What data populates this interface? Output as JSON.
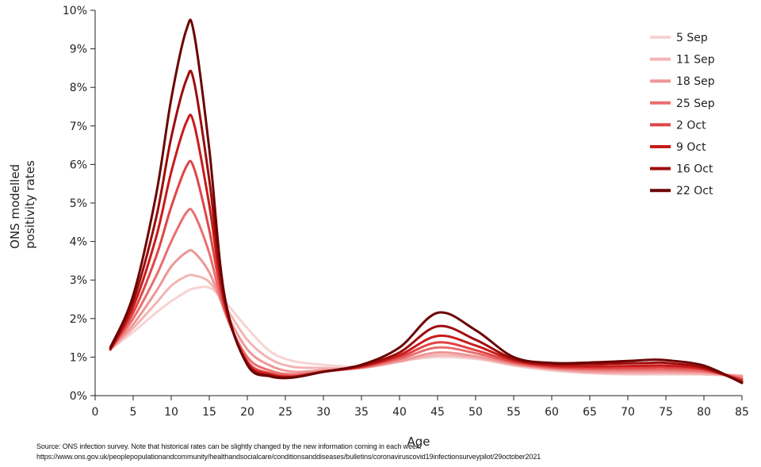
{
  "chart_data": {
    "type": "line",
    "title": "",
    "xlabel": "Age",
    "ylabel_lines": [
      "ONS modelled",
      "positivity rates"
    ],
    "xlim": [
      0,
      85
    ],
    "ylim": [
      0,
      10
    ],
    "x_ticks": [
      0,
      5,
      10,
      15,
      20,
      25,
      30,
      35,
      40,
      45,
      50,
      55,
      60,
      65,
      70,
      75,
      80,
      85
    ],
    "x_tick_labels": [
      "0",
      "5",
      "10",
      "15",
      "20",
      "25",
      "30",
      "35",
      "40",
      "45",
      "50",
      "55",
      "60",
      "65",
      "70",
      "75",
      "80",
      "85"
    ],
    "y_ticks": [
      0,
      1,
      2,
      3,
      4,
      5,
      6,
      7,
      8,
      9,
      10
    ],
    "y_tick_labels": [
      "0%",
      "1%",
      "2%",
      "3%",
      "4%",
      "5%",
      "6%",
      "7%",
      "8%",
      "9%",
      "10%"
    ],
    "grid": false,
    "legend_position": "top-right",
    "x": [
      2,
      5,
      8,
      10,
      12,
      13,
      15,
      17,
      20,
      23,
      26,
      30,
      35,
      40,
      45,
      50,
      55,
      60,
      65,
      70,
      73,
      75,
      80,
      85
    ],
    "series": [
      {
        "name": "5 Sep",
        "color": "#f7d3d3",
        "values": [
          1.2,
          1.65,
          2.15,
          2.45,
          2.7,
          2.78,
          2.8,
          2.45,
          1.75,
          1.15,
          0.9,
          0.8,
          0.75,
          0.9,
          1.0,
          0.95,
          0.78,
          0.65,
          0.58,
          0.55,
          0.55,
          0.55,
          0.55,
          0.5
        ]
      },
      {
        "name": "11 Sep",
        "color": "#f3b4b4",
        "values": [
          1.2,
          1.75,
          2.4,
          2.85,
          3.1,
          3.12,
          2.95,
          2.35,
          1.45,
          0.95,
          0.75,
          0.72,
          0.72,
          0.88,
          1.05,
          0.98,
          0.8,
          0.68,
          0.6,
          0.58,
          0.58,
          0.58,
          0.56,
          0.52
        ]
      },
      {
        "name": "18 Sep",
        "color": "#ef9696",
        "values": [
          1.2,
          1.85,
          2.7,
          3.35,
          3.72,
          3.72,
          3.2,
          2.25,
          1.2,
          0.78,
          0.62,
          0.66,
          0.72,
          0.9,
          1.12,
          1.02,
          0.82,
          0.7,
          0.63,
          0.62,
          0.62,
          0.62,
          0.6,
          0.5
        ]
      },
      {
        "name": "25 Sep",
        "color": "#ea6e6e",
        "values": [
          1.2,
          2.0,
          3.1,
          4.0,
          4.75,
          4.72,
          3.7,
          2.2,
          1.0,
          0.65,
          0.55,
          0.63,
          0.73,
          0.95,
          1.25,
          1.1,
          0.85,
          0.72,
          0.68,
          0.67,
          0.67,
          0.67,
          0.63,
          0.45
        ]
      },
      {
        "name": "2 Oct",
        "color": "#e04545",
        "values": [
          1.2,
          2.15,
          3.6,
          4.9,
          5.95,
          5.9,
          4.3,
          2.3,
          0.9,
          0.58,
          0.5,
          0.62,
          0.75,
          1.0,
          1.38,
          1.18,
          0.88,
          0.75,
          0.72,
          0.72,
          0.73,
          0.73,
          0.67,
          0.42
        ]
      },
      {
        "name": "9 Oct",
        "color": "#c81b1b",
        "values": [
          1.2,
          2.3,
          4.1,
          5.8,
          7.1,
          7.05,
          4.95,
          2.4,
          0.85,
          0.55,
          0.49,
          0.62,
          0.76,
          1.05,
          1.55,
          1.3,
          0.92,
          0.78,
          0.76,
          0.77,
          0.78,
          0.78,
          0.7,
          0.38
        ]
      },
      {
        "name": "16 Oct",
        "color": "#9e0c0c",
        "values": [
          1.2,
          2.45,
          4.6,
          6.7,
          8.2,
          8.15,
          5.6,
          2.5,
          0.82,
          0.52,
          0.48,
          0.62,
          0.78,
          1.12,
          1.8,
          1.45,
          0.95,
          0.82,
          0.82,
          0.84,
          0.85,
          0.85,
          0.73,
          0.35
        ]
      },
      {
        "name": "22 Oct",
        "color": "#6b0303",
        "values": [
          1.25,
          2.6,
          5.2,
          7.7,
          9.5,
          9.4,
          6.4,
          2.6,
          0.8,
          0.5,
          0.47,
          0.62,
          0.8,
          1.25,
          2.15,
          1.7,
          1.0,
          0.85,
          0.86,
          0.9,
          0.93,
          0.92,
          0.78,
          0.33
        ]
      }
    ]
  },
  "source": {
    "line1": "Source: ONS infection survey. Note that historical rates can be slightly changed by the new information coming in each week.",
    "line2": "https://www.ons.gov.uk/peoplepopulationandcommunity/healthandsocialcare/conditionsanddiseases/bulletins/coronaviruscovid19infectionsurveypilot/29october2021"
  }
}
